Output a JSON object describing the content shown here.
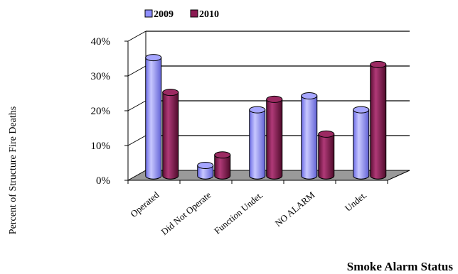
{
  "chart_data": {
    "type": "bar",
    "title": "",
    "xlabel": "Smoke Alarm Status",
    "ylabel": "Percent of Structure Fire Deaths",
    "categories": [
      "Operated",
      "Did Not Operate",
      "Function Undet.",
      "NO ALARM",
      "Undet."
    ],
    "series": [
      {
        "name": "2009",
        "values": [
          34,
          3,
          19,
          23,
          19
        ],
        "color": "#8f8fff"
      },
      {
        "name": "2010",
        "values": [
          24,
          6,
          22,
          12,
          32
        ],
        "color": "#8b1a52"
      }
    ],
    "ylim": [
      0,
      40
    ],
    "yticks": [
      0,
      10,
      20,
      30,
      40
    ],
    "ytick_labels": [
      "0%",
      "10%",
      "20%",
      "30%",
      "40%"
    ],
    "grid": true,
    "legend": "top",
    "style": "3d-cylinder"
  }
}
